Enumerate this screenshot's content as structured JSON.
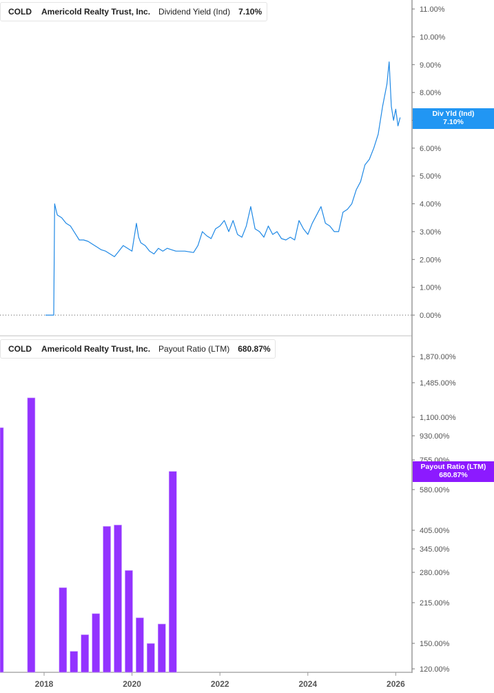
{
  "top_panel": {
    "legend": {
      "ticker": "COLD",
      "company": "Americold Realty Trust, Inc.",
      "metric": "Dividend Yield (Ind)",
      "value": "7.10%",
      "color": "#1e88e5"
    },
    "flag": {
      "label": "Div Yld (Ind)",
      "value": "7.10%",
      "color": "#2196f3"
    }
  },
  "bottom_panel": {
    "legend": {
      "ticker": "COLD",
      "company": "Americold Realty Trust, Inc.",
      "metric": "Payout Ratio (LTM)",
      "value": "680.87%",
      "color": "#8b1cf7"
    },
    "flag": {
      "label": "Payout Ratio (LTM)",
      "value": "680.87%",
      "color": "#8c1aff"
    }
  },
  "chart_data": [
    {
      "type": "line",
      "title": "COLD Americold Realty Trust, Inc. Dividend Yield (Ind)",
      "ylabel": "Dividend Yield (Ind)",
      "yticks": [
        "0.00%",
        "1.00%",
        "2.00%",
        "3.00%",
        "4.00%",
        "5.00%",
        "6.00%",
        "7.00%",
        "8.00%",
        "9.00%",
        "10.00%",
        "11.00%"
      ],
      "ylim": [
        0,
        11
      ],
      "xticks": [
        "2018",
        "2020",
        "2022",
        "2024",
        "2026"
      ],
      "last_value": 7.1,
      "series": [
        {
          "name": "Dividend Yield (Ind)",
          "x": [
            2018.0,
            2018.22,
            2018.24,
            2018.3,
            2018.4,
            2018.5,
            2018.6,
            2018.7,
            2018.8,
            2018.9,
            2019.0,
            2019.1,
            2019.2,
            2019.3,
            2019.4,
            2019.5,
            2019.6,
            2019.7,
            2019.8,
            2019.9,
            2020.0,
            2020.1,
            2020.15,
            2020.2,
            2020.3,
            2020.4,
            2020.5,
            2020.6,
            2020.7,
            2020.8,
            2020.9,
            2021.0,
            2021.2,
            2021.4,
            2021.5,
            2021.6,
            2021.7,
            2021.8,
            2021.9,
            2022.0,
            2022.1,
            2022.2,
            2022.3,
            2022.4,
            2022.5,
            2022.6,
            2022.7,
            2022.8,
            2022.9,
            2023.0,
            2023.1,
            2023.2,
            2023.3,
            2023.4,
            2023.5,
            2023.6,
            2023.7,
            2023.8,
            2023.9,
            2024.0,
            2024.1,
            2024.2,
            2024.3,
            2024.4,
            2024.5,
            2024.6,
            2024.7,
            2024.8,
            2024.9,
            2025.0,
            2025.1,
            2025.2,
            2025.3,
            2025.4,
            2025.5,
            2025.6,
            2025.7,
            2025.8,
            2025.85,
            2025.9,
            2025.95,
            2026.0,
            2026.05,
            2026.1
          ],
          "values": [
            0.0,
            0.0,
            4.0,
            3.6,
            3.5,
            3.3,
            3.2,
            2.95,
            2.7,
            2.7,
            2.65,
            2.55,
            2.45,
            2.35,
            2.3,
            2.2,
            2.1,
            2.3,
            2.5,
            2.4,
            2.3,
            3.3,
            2.8,
            2.6,
            2.5,
            2.3,
            2.2,
            2.4,
            2.3,
            2.4,
            2.35,
            2.3,
            2.3,
            2.25,
            2.5,
            3.0,
            2.85,
            2.75,
            3.1,
            3.2,
            3.4,
            3.0,
            3.4,
            2.9,
            2.8,
            3.2,
            3.9,
            3.1,
            3.0,
            2.8,
            3.2,
            2.9,
            3.0,
            2.75,
            2.7,
            2.8,
            2.7,
            3.4,
            3.1,
            2.9,
            3.3,
            3.6,
            3.9,
            3.3,
            3.2,
            3.0,
            3.0,
            3.7,
            3.8,
            4.0,
            4.5,
            4.8,
            5.4,
            5.6,
            6.0,
            6.5,
            7.5,
            8.3,
            9.1,
            7.5,
            7.0,
            7.4,
            6.8,
            7.1
          ]
        }
      ]
    },
    {
      "type": "bar",
      "title": "COLD Americold Realty Trust, Inc. Payout Ratio (LTM)",
      "ylabel": "Payout Ratio (LTM)",
      "yscale": "log",
      "yticks": [
        "120.00%",
        "150.00%",
        "215.00%",
        "280.00%",
        "345.00%",
        "405.00%",
        "580.00%",
        "755.00%",
        "930.00%",
        "1,100.00%",
        "1,485.00%",
        "1,870.00%"
      ],
      "ylim": [
        120,
        2100
      ],
      "xticks": [
        "2018",
        "2020",
        "2022",
        "2024",
        "2026"
      ],
      "last_value": 680.87,
      "categories": [
        "2017 Q1",
        "2017 Q4",
        "2018 Q3",
        "2018 Q4",
        "2019 Q1",
        "2019 Q2",
        "2019 Q3",
        "2019 Q4",
        "2020 Q1",
        "2020 Q2",
        "2020 Q3",
        "2020 Q4",
        "2021 Q1"
      ],
      "x": [
        2017.0,
        2017.7,
        2018.42,
        2018.67,
        2018.92,
        2019.17,
        2019.42,
        2019.67,
        2019.92,
        2020.17,
        2020.42,
        2020.67,
        2020.92
      ],
      "values": [
        1000,
        1300,
        245,
        140,
        162,
        195,
        420,
        425,
        285,
        188,
        150,
        178,
        681
      ]
    }
  ]
}
